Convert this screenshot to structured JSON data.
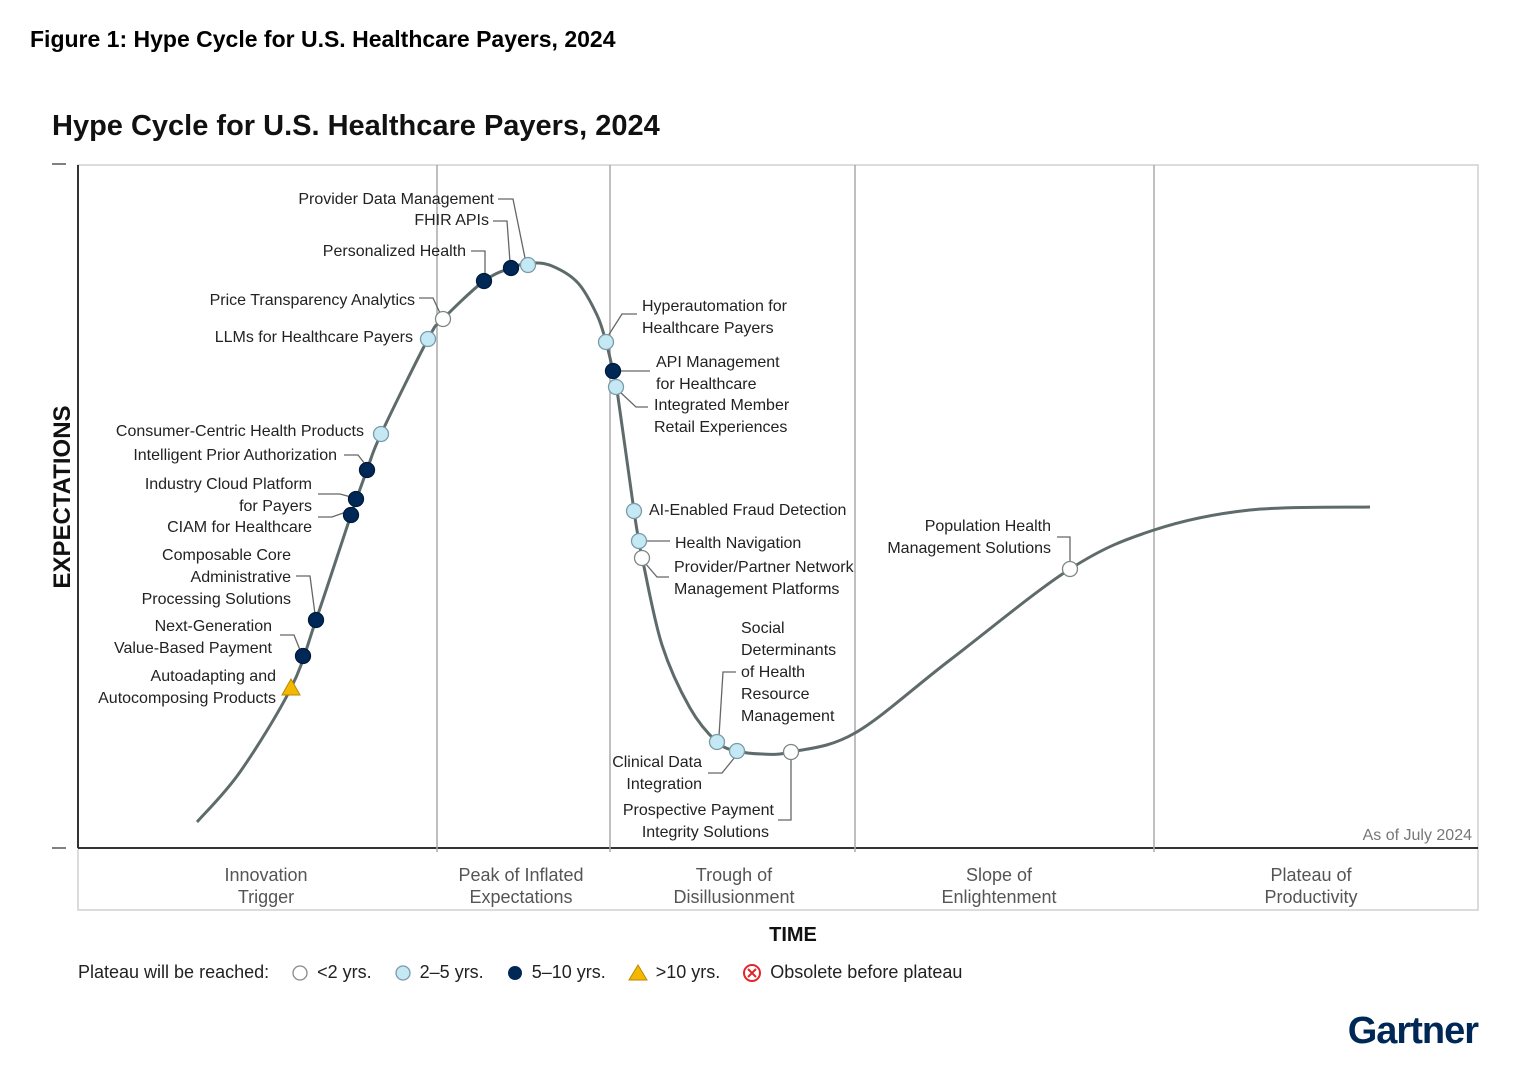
{
  "figure_title": "Figure 1: Hype Cycle for U.S. Healthcare Payers, 2024",
  "chart_title": "Hype Cycle for U.S. Healthcare Payers, 2024",
  "y_axis_label": "EXPECTATIONS",
  "x_axis_label": "TIME",
  "as_of": "As of July 2024",
  "phases": [
    "Innovation Trigger",
    "Peak of Inflated Expectations",
    "Trough of Disillusionment",
    "Slope of Enlightenment",
    "Plateau of Productivity"
  ],
  "phase_lines": [
    [
      "Innovation",
      "Trigger"
    ],
    [
      "Peak of Inflated",
      "Expectations"
    ],
    [
      "Trough of",
      "Disillusionment"
    ],
    [
      "Slope of",
      "Enlightenment"
    ],
    [
      "Plateau of",
      "Productivity"
    ]
  ],
  "colors": {
    "curve": "#5f6b6b",
    "lt2": "#ffffff",
    "y2to5": "#c5e8f5",
    "y5to10": "#002856",
    "gt10": "#f5b800",
    "obsolete": "#e0262b"
  },
  "legend": {
    "title": "Plateau will be reached:",
    "items": [
      {
        "key": "lt2",
        "label": "<2 yrs."
      },
      {
        "key": "y2to5",
        "label": "2–5 yrs."
      },
      {
        "key": "y5to10",
        "label": "5–10 yrs."
      },
      {
        "key": "gt10",
        "label": ">10 yrs."
      },
      {
        "key": "obsolete",
        "label": "Obsolete before plateau"
      }
    ]
  },
  "technologies": [
    {
      "lines": [
        "Provider Data Management"
      ],
      "plateau": "y2to5",
      "phase": "Peak of Inflated Expectations"
    },
    {
      "lines": [
        "FHIR APIs"
      ],
      "plateau": "y5to10",
      "phase": "Innovation Trigger"
    },
    {
      "lines": [
        "Personalized Health"
      ],
      "plateau": "y5to10",
      "phase": "Innovation Trigger"
    },
    {
      "lines": [
        "Price Transparency Analytics"
      ],
      "plateau": "lt2",
      "phase": "Peak of Inflated Expectations"
    },
    {
      "lines": [
        "LLMs for Healthcare Payers"
      ],
      "plateau": "y2to5",
      "phase": "Innovation Trigger"
    },
    {
      "lines": [
        "Consumer-Centric Health Products"
      ],
      "plateau": "y2to5",
      "phase": "Innovation Trigger"
    },
    {
      "lines": [
        "Intelligent Prior Authorization"
      ],
      "plateau": "y5to10",
      "phase": "Innovation Trigger"
    },
    {
      "lines": [
        "Industry Cloud Platform",
        "for Payers"
      ],
      "plateau": "y5to10",
      "phase": "Innovation Trigger"
    },
    {
      "lines": [
        "CIAM for Healthcare"
      ],
      "plateau": "y5to10",
      "phase": "Innovation Trigger"
    },
    {
      "lines": [
        "Composable Core",
        "Administrative",
        "Processing Solutions"
      ],
      "plateau": "y5to10",
      "phase": "Innovation Trigger"
    },
    {
      "lines": [
        "Next-Generation",
        "Value-Based Payment"
      ],
      "plateau": "y5to10",
      "phase": "Innovation Trigger"
    },
    {
      "lines": [
        "Autoadapting and",
        "Autocomposing Products"
      ],
      "plateau": "gt10",
      "phase": "Innovation Trigger"
    },
    {
      "lines": [
        "Hyperautomation for",
        "Healthcare Payers"
      ],
      "plateau": "y2to5",
      "phase": "Trough of Disillusionment"
    },
    {
      "lines": [
        "API Management",
        "for Healthcare"
      ],
      "plateau": "y5to10",
      "phase": "Trough of Disillusionment"
    },
    {
      "lines": [
        "Integrated Member",
        "Retail Experiences"
      ],
      "plateau": "y2to5",
      "phase": "Trough of Disillusionment"
    },
    {
      "lines": [
        "AI-Enabled Fraud Detection"
      ],
      "plateau": "y2to5",
      "phase": "Trough of Disillusionment"
    },
    {
      "lines": [
        "Health Navigation"
      ],
      "plateau": "y2to5",
      "phase": "Trough of Disillusionment"
    },
    {
      "lines": [
        "Provider/Partner Network",
        "Management Platforms"
      ],
      "plateau": "lt2",
      "phase": "Trough of Disillusionment"
    },
    {
      "lines": [
        "Social",
        "Determinants",
        "of Health",
        "Resource",
        "Management"
      ],
      "plateau": "y2to5",
      "phase": "Trough of Disillusionment"
    },
    {
      "lines": [
        "Clinical Data",
        "Integration"
      ],
      "plateau": "y2to5",
      "phase": "Trough of Disillusionment"
    },
    {
      "lines": [
        "Prospective Payment",
        "Integrity Solutions"
      ],
      "plateau": "lt2",
      "phase": "Trough of Disillusionment"
    },
    {
      "lines": [
        "Population Health",
        "Management Solutions"
      ],
      "plateau": "lt2",
      "phase": "Slope of Enlightenment"
    }
  ],
  "logo": "Gartner"
}
